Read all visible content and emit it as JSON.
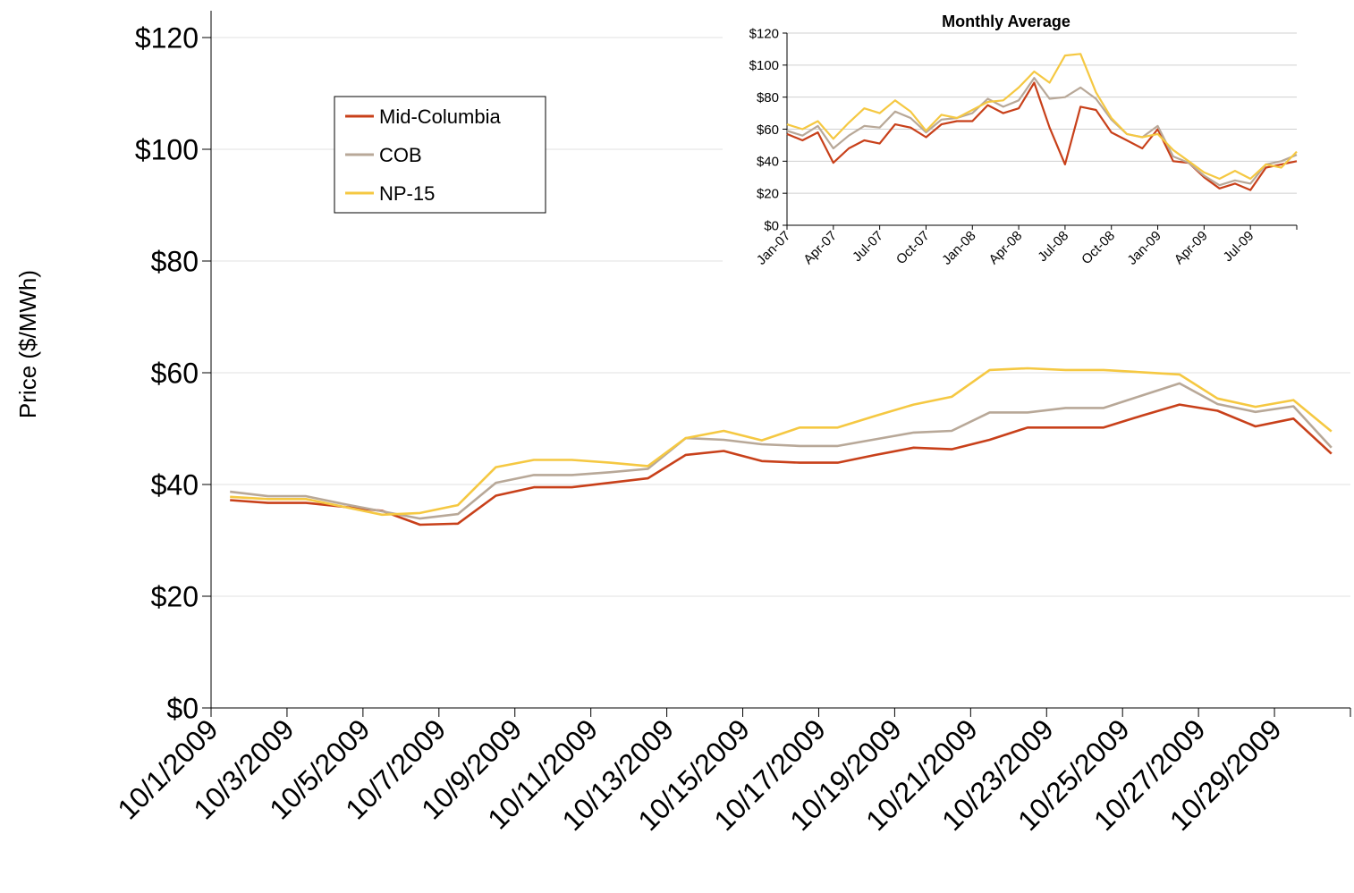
{
  "chart_data": [
    {
      "type": "line",
      "y_label": "Price ($/MWh)",
      "categories": [
        "10/1/2009",
        null,
        "10/3/2009",
        null,
        "10/5/2009",
        null,
        "10/7/2009",
        null,
        "10/9/2009",
        null,
        "10/11/2009",
        null,
        "10/13/2009",
        null,
        "10/15/2009",
        null,
        "10/17/2009",
        null,
        "10/19/2009",
        null,
        "10/21/2009",
        null,
        "10/23/2009",
        null,
        "10/25/2009",
        null,
        "10/27/2009",
        null,
        "10/29/2009",
        null
      ],
      "series": [
        {
          "name": "Mid-Columbia",
          "color": "#c8401a",
          "values": [
            37.2,
            36.7,
            36.7,
            36,
            35.3,
            32.8,
            33,
            38,
            39.5,
            39.5,
            40.3,
            41.1,
            45.3,
            46,
            44.2,
            43.9,
            43.9,
            45.3,
            46.6,
            46.3,
            48,
            50.2,
            50.2,
            50.2,
            52.3,
            54.3,
            53.2,
            50.4,
            51.8,
            45.5
          ]
        },
        {
          "name": "COB",
          "color": "#b8a898",
          "values": [
            38.7,
            37.9,
            37.9,
            36.5,
            35.2,
            33.9,
            34.7,
            40.3,
            41.7,
            41.7,
            42.2,
            42.8,
            48.3,
            48,
            47.2,
            46.9,
            46.9,
            48.1,
            49.3,
            49.6,
            52.9,
            52.9,
            53.7,
            53.7,
            55.9,
            58.1,
            54.4,
            53,
            54,
            46.6
          ]
        },
        {
          "name": "NP-15",
          "color": "#f5c842",
          "values": [
            37.8,
            37.4,
            37.4,
            36,
            34.6,
            34.9,
            36.3,
            43.1,
            44.4,
            44.4,
            43.9,
            43.3,
            48.3,
            49.6,
            47.9,
            50.2,
            50.2,
            52.3,
            54.3,
            55.7,
            60.5,
            60.8,
            60.5,
            60.5,
            60.1,
            59.7,
            55.4,
            53.9,
            55.1,
            49.5
          ]
        }
      ],
      "ylim": [
        0,
        120
      ],
      "yticks": [
        {
          "value": 0,
          "label": "$0"
        },
        {
          "value": 20,
          "label": "$20"
        },
        {
          "value": 40,
          "label": "$40"
        },
        {
          "value": 60,
          "label": "$60"
        },
        {
          "value": 80,
          "label": "$80"
        },
        {
          "value": 100,
          "label": "$100"
        },
        {
          "value": 120,
          "label": "$120"
        }
      ],
      "grid": true,
      "legend": "upper left"
    },
    {
      "type": "line",
      "title": "Monthly Average",
      "categories": [
        "Jan-07",
        null,
        null,
        "Apr-07",
        null,
        null,
        "Jul-07",
        null,
        null,
        "Oct-07",
        null,
        null,
        "Jan-08",
        null,
        null,
        "Apr-08",
        null,
        null,
        "Jul-08",
        null,
        null,
        "Oct-08",
        null,
        null,
        "Jan-09",
        null,
        null,
        "Apr-09",
        null,
        null,
        "Jul-09",
        null,
        null,
        null
      ],
      "series": [
        {
          "name": "Mid-Columbia",
          "color": "#c8401a",
          "values": [
            57,
            53,
            58,
            39,
            48,
            53,
            51,
            63,
            61,
            55,
            63,
            65,
            65,
            75,
            70,
            73,
            89,
            61,
            38,
            74,
            72,
            58,
            53,
            48,
            60,
            40,
            39,
            30,
            23,
            26,
            22,
            36,
            38,
            40
          ]
        },
        {
          "name": "COB",
          "color": "#b8a898",
          "values": [
            59,
            56,
            62,
            48,
            56,
            62,
            61,
            71,
            67,
            58,
            66,
            67,
            70,
            79,
            74,
            78,
            92,
            79,
            80,
            86,
            79,
            66,
            57,
            55,
            62,
            43,
            39,
            31,
            25,
            28,
            26,
            38,
            40,
            44
          ]
        },
        {
          "name": "NP-15",
          "color": "#f5c842",
          "values": [
            63,
            60,
            65,
            54,
            64,
            73,
            70,
            78,
            71,
            59,
            69,
            67,
            72,
            77,
            78,
            86,
            96,
            89,
            106,
            107,
            83,
            67,
            57,
            55,
            57,
            47,
            40,
            33,
            29,
            34,
            29,
            38,
            36,
            46
          ]
        }
      ],
      "ylim": [
        0,
        120
      ],
      "yticks": [
        {
          "value": 0,
          "label": "$0"
        },
        {
          "value": 20,
          "label": "$20"
        },
        {
          "value": 40,
          "label": "$40"
        },
        {
          "value": 60,
          "label": "$60"
        },
        {
          "value": 80,
          "label": "$80"
        },
        {
          "value": 100,
          "label": "$100"
        },
        {
          "value": 120,
          "label": "$120"
        }
      ],
      "grid": true
    }
  ]
}
